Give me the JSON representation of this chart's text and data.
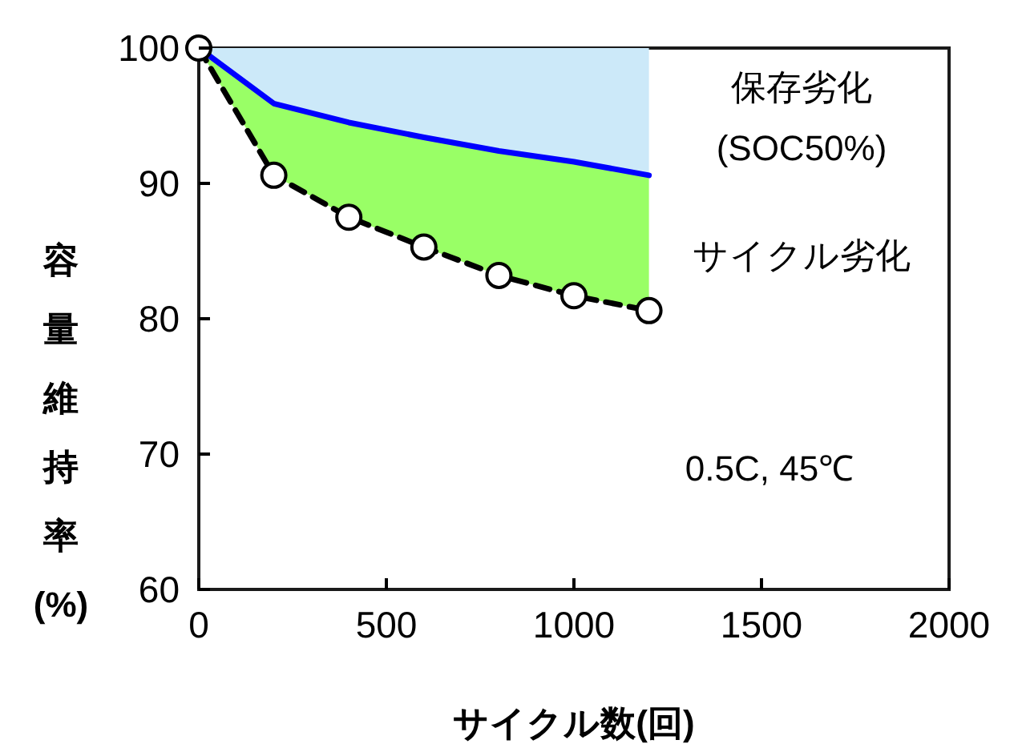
{
  "chart_data": {
    "type": "line",
    "xlabel": "サイクル数(回)",
    "ylabel": "容量維持率(%)",
    "x": [
      0,
      200,
      400,
      600,
      800,
      1000,
      1200
    ],
    "xlim": [
      0,
      2000
    ],
    "xticks": [
      0,
      500,
      1000,
      1500,
      2000
    ],
    "ylim": [
      60,
      100
    ],
    "yticks": [
      60,
      70,
      80,
      90,
      100
    ],
    "grid": false,
    "series": [
      {
        "color": "#0000ff",
        "values": [
          100,
          95.9,
          94.5,
          93.4,
          92.4,
          91.6,
          90.6
        ],
        "marker": "none",
        "line_style": "solid"
      },
      {
        "color": "#000000",
        "values": [
          100,
          90.6,
          87.5,
          85.3,
          83.2,
          81.7,
          80.6
        ],
        "marker": "circle",
        "line_style": "dashed"
      }
    ],
    "annotations": [
      "保存劣化",
      "(SOC50%)",
      "サイクル劣化",
      "0.5C, 45℃"
    ]
  }
}
